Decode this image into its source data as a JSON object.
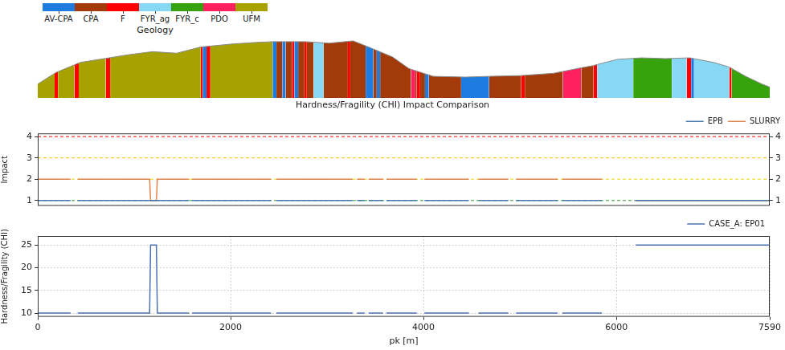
{
  "chart_data": [
    {
      "type": "area",
      "legend_title": "Geology",
      "legend": "upper left",
      "tick_labels": false,
      "units": [
        {
          "name": "AV-CPA",
          "color": "#1e7be0"
        },
        {
          "name": "CPA",
          "color": "#a33a0a"
        },
        {
          "name": "F",
          "color": "#ff0000"
        },
        {
          "name": "FYR_ag",
          "color": "#87d8f5"
        },
        {
          "name": "FYR_c",
          "color": "#36a30c"
        },
        {
          "name": "PDO",
          "color": "#ff2060"
        },
        {
          "name": "UFM",
          "color": "#a8a200"
        }
      ],
      "x": [
        0,
        190,
        440,
        690,
        940,
        1190,
        1440,
        1690,
        2020,
        2270,
        2440,
        2770,
        3020,
        3270,
        3430,
        3680,
        3850,
        4100,
        4430,
        4680,
        5010,
        5350,
        5590,
        5760,
        6010,
        6260,
        6510,
        6760,
        7010,
        7170,
        7340,
        7510,
        7590
      ],
      "values": [
        18,
        33,
        46,
        51,
        56,
        60,
        58,
        66,
        70,
        72,
        73,
        73,
        71,
        74,
        66,
        53,
        38,
        28,
        27,
        28,
        29,
        32,
        38,
        42,
        50,
        52,
        51,
        52,
        46,
        40,
        28,
        18,
        14
      ],
      "segments": [
        {
          "unit": "UFM",
          "start": 0,
          "end": 175
        },
        {
          "unit": "F",
          "start": 175,
          "end": 210
        },
        {
          "unit": "UFM",
          "start": 210,
          "end": 380
        },
        {
          "unit": "F",
          "start": 380,
          "end": 425
        },
        {
          "unit": "UFM",
          "start": 425,
          "end": 705
        },
        {
          "unit": "F",
          "start": 705,
          "end": 750
        },
        {
          "unit": "UFM",
          "start": 750,
          "end": 1690
        },
        {
          "unit": "F",
          "start": 1690,
          "end": 1710
        },
        {
          "unit": "AV-CPA",
          "start": 1710,
          "end": 1750
        },
        {
          "unit": "F",
          "start": 1750,
          "end": 1790
        },
        {
          "unit": "UFM",
          "start": 1790,
          "end": 2435
        },
        {
          "unit": "AV-CPA",
          "start": 2435,
          "end": 2475
        },
        {
          "unit": "CPA",
          "start": 2475,
          "end": 2535
        },
        {
          "unit": "AV-CPA",
          "start": 2535,
          "end": 2570
        },
        {
          "unit": "CPA",
          "start": 2570,
          "end": 2635
        },
        {
          "unit": "F",
          "start": 2635,
          "end": 2660
        },
        {
          "unit": "AV-CPA",
          "start": 2660,
          "end": 2700
        },
        {
          "unit": "CPA",
          "start": 2700,
          "end": 2765
        },
        {
          "unit": "F",
          "start": 2765,
          "end": 2790
        },
        {
          "unit": "CPA",
          "start": 2790,
          "end": 2860
        },
        {
          "unit": "FYR_ag",
          "start": 2860,
          "end": 2965
        },
        {
          "unit": "CPA",
          "start": 2965,
          "end": 3215
        },
        {
          "unit": "F",
          "start": 3215,
          "end": 3240
        },
        {
          "unit": "CPA",
          "start": 3240,
          "end": 3400
        },
        {
          "unit": "AV-CPA",
          "start": 3400,
          "end": 3480
        },
        {
          "unit": "CPA",
          "start": 3480,
          "end": 3515
        },
        {
          "unit": "AV-CPA",
          "start": 3515,
          "end": 3550
        },
        {
          "unit": "CPA",
          "start": 3550,
          "end": 3870
        },
        {
          "unit": "PDO",
          "start": 3870,
          "end": 3915
        },
        {
          "unit": "CPA",
          "start": 3915,
          "end": 3930
        },
        {
          "unit": "F",
          "start": 3930,
          "end": 3965
        },
        {
          "unit": "CPA",
          "start": 3965,
          "end": 4015
        },
        {
          "unit": "AV-CPA",
          "start": 4015,
          "end": 4055
        },
        {
          "unit": "CPA",
          "start": 4055,
          "end": 4390
        },
        {
          "unit": "AV-CPA",
          "start": 4390,
          "end": 4680
        },
        {
          "unit": "CPA",
          "start": 4680,
          "end": 5010
        },
        {
          "unit": "F",
          "start": 5010,
          "end": 5050
        },
        {
          "unit": "CPA",
          "start": 5050,
          "end": 5445
        },
        {
          "unit": "PDO",
          "start": 5445,
          "end": 5635
        },
        {
          "unit": "CPA",
          "start": 5635,
          "end": 5760
        },
        {
          "unit": "F",
          "start": 5760,
          "end": 5800
        },
        {
          "unit": "FYR_ag",
          "start": 5800,
          "end": 6175
        },
        {
          "unit": "FYR_c",
          "start": 6175,
          "end": 6575
        },
        {
          "unit": "FYR_ag",
          "start": 6575,
          "end": 6730
        },
        {
          "unit": "F",
          "start": 6730,
          "end": 6775
        },
        {
          "unit": "AV-CPA",
          "start": 6775,
          "end": 6805
        },
        {
          "unit": "FYR_ag",
          "start": 6805,
          "end": 7170
        },
        {
          "unit": "F",
          "start": 7170,
          "end": 7195
        },
        {
          "unit": "FYR_c",
          "start": 7195,
          "end": 7590
        }
      ],
      "xlim": [
        0,
        7590
      ],
      "ylim": [
        0,
        76
      ]
    },
    {
      "type": "line",
      "title": "Hardness/Fragility (CHI) Impact Comparison",
      "y_label": "Impact",
      "x": [
        0,
        340,
        380,
        415,
        1160,
        1170,
        1230,
        1240,
        1570,
        1585,
        1600,
        2420,
        2450,
        2475,
        3265,
        3290,
        3310,
        3390,
        3410,
        3430,
        3580,
        3600,
        3615,
        3930,
        3970,
        4010,
        4470,
        4520,
        4570,
        4880,
        4920,
        4960,
        5390,
        5415,
        5440,
        5850,
        6025,
        6200,
        7590
      ],
      "series": [
        {
          "name": "EPB",
          "color": "#4878b0",
          "values": [
            1,
            1,
            null,
            1,
            1,
            1,
            1,
            1,
            1,
            null,
            1,
            1,
            null,
            1,
            1,
            null,
            1,
            1,
            null,
            1,
            1,
            null,
            1,
            1,
            null,
            1,
            1,
            null,
            1,
            1,
            null,
            1,
            1,
            null,
            1,
            1,
            null,
            1,
            1
          ]
        },
        {
          "name": "SLURRY",
          "color": "#dd8452",
          "values": [
            2,
            2,
            null,
            2,
            2,
            1,
            1,
            2,
            2,
            null,
            2,
            2,
            null,
            2,
            2,
            null,
            2,
            2,
            null,
            2,
            2,
            null,
            2,
            2,
            null,
            2,
            2,
            null,
            2,
            2,
            null,
            2,
            2,
            null,
            2,
            2,
            null,
            1,
            1
          ]
        }
      ],
      "thresholds": [
        {
          "value": 4,
          "color": "#ff0000"
        },
        {
          "value": 3,
          "color": "#f5c400"
        },
        {
          "value": 2,
          "color": "#e8d800"
        },
        {
          "value": 1,
          "color": "#2ca02c"
        }
      ],
      "xlim": [
        0,
        7590
      ],
      "ylim": [
        0.75,
        4.15
      ],
      "yticks": [
        1,
        2,
        3,
        4
      ],
      "y2lim": [
        0.75,
        4.15
      ],
      "y2ticks": [
        1,
        2,
        3,
        4
      ],
      "tick_labels": "y",
      "grid": false,
      "legend": "top"
    },
    {
      "type": "line",
      "x_label": "pk [m]",
      "y_label": "Hardness/Fragility (CHI)",
      "x": [
        0,
        340,
        380,
        415,
        1160,
        1170,
        1230,
        1240,
        1570,
        1585,
        1600,
        2420,
        2450,
        2475,
        3265,
        3290,
        3310,
        3390,
        3410,
        3430,
        3580,
        3600,
        3615,
        3930,
        3970,
        4010,
        4470,
        4520,
        4570,
        4880,
        4920,
        4960,
        5390,
        5415,
        5440,
        5850,
        6025,
        6200,
        7590
      ],
      "series": [
        {
          "name": "CASE_A: EP01",
          "color": "#4c72b0",
          "values": [
            10,
            10,
            null,
            10,
            10,
            25,
            25,
            10,
            10,
            null,
            10,
            10,
            null,
            10,
            10,
            null,
            10,
            10,
            null,
            10,
            10,
            null,
            10,
            10,
            null,
            10,
            10,
            null,
            10,
            10,
            null,
            10,
            10,
            null,
            10,
            10,
            null,
            25,
            25
          ]
        }
      ],
      "xlim": [
        0,
        7590
      ],
      "xticks": [
        0,
        2000,
        4000,
        6000,
        7590
      ],
      "ylim": [
        9.2,
        27
      ],
      "yticks": [
        10,
        15,
        20,
        25
      ],
      "grid": true,
      "legend": "top"
    }
  ]
}
